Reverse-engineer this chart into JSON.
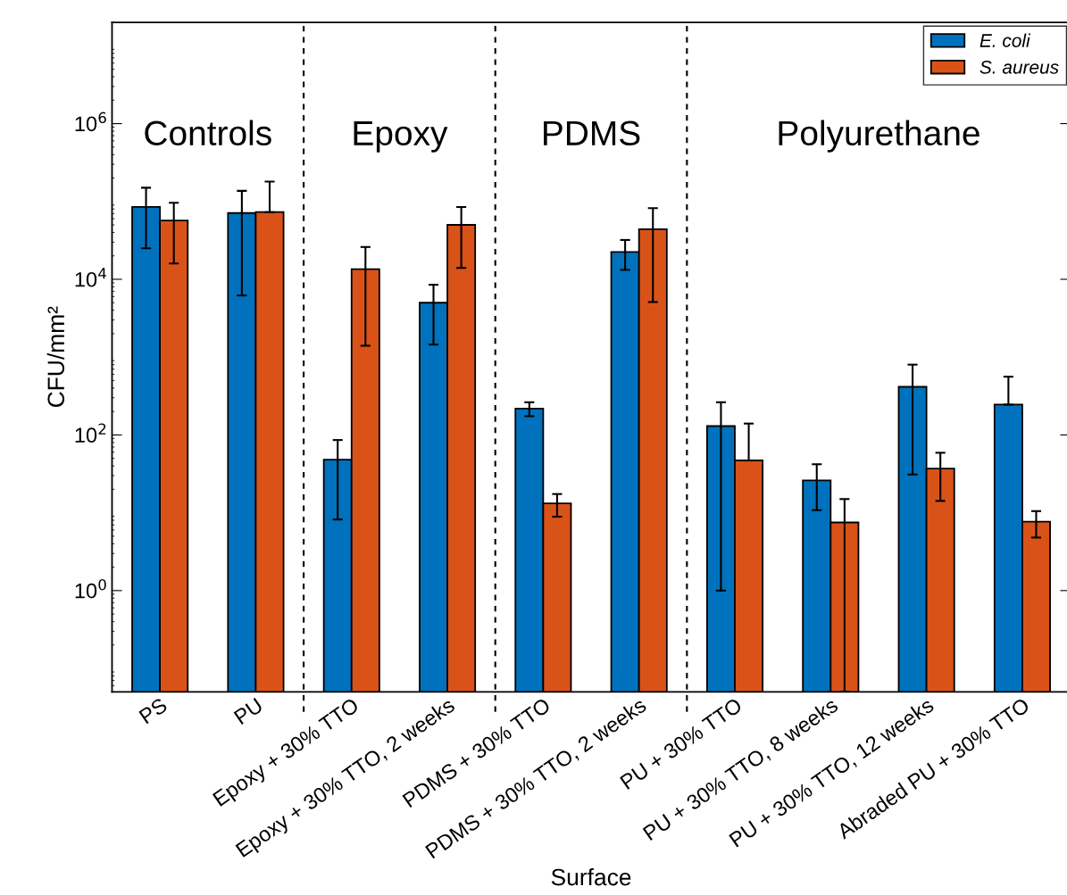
{
  "chart_data": {
    "type": "bar",
    "xlabel": "Surface",
    "ylabel": "CFU/mm²",
    "categories": [
      "PS",
      "PU",
      "Epoxy + 30% TTO",
      "Epoxy + 30% TTO, 2 weeks",
      "PDMS + 30% TTO",
      "PDMS + 30% TTO, 2 weeks",
      "PU + 30% TTO",
      "PU + 30% TTO, 8 weeks",
      "PU + 30% TTO, 12 weeks",
      "Abraded PU + 30% TTO"
    ],
    "series": [
      {
        "name": "E. coli",
        "color": "#0072bd",
        "values": [
          85000,
          71000,
          48,
          5000,
          218,
          22400,
          130,
          26,
          415,
          245
        ],
        "errors": [
          [
            25000,
            150000
          ],
          [
            6200,
            137000
          ],
          [
            8.2,
            86
          ],
          [
            1450,
            8500
          ],
          [
            174,
            263
          ],
          [
            13200,
            32000
          ],
          [
            1.0,
            263
          ],
          [
            10.8,
            42
          ],
          [
            31,
            800
          ],
          [
            245,
            560
          ]
        ]
      },
      {
        "name": "S. aureus",
        "color": "#d95319",
        "values": [
          57000,
          73000,
          13500,
          50000,
          13.2,
          44000,
          47,
          7.5,
          37,
          7.7
        ],
        "errors": [
          [
            16000,
            96000
          ],
          [
            73000,
            180000
          ],
          [
            1400,
            26000
          ],
          [
            14000,
            85000
          ],
          [
            8.9,
            17.4
          ],
          [
            5100,
            82000
          ],
          [
            47,
            140
          ],
          [
            0.05,
            15
          ],
          [
            14.2,
            59
          ],
          [
            4.8,
            10.5
          ]
        ]
      }
    ],
    "log": "y",
    "ylim": [
      0.05,
      20000000
    ],
    "yticks": [
      {
        "value": 1,
        "label": "10$^{0}$"
      },
      {
        "value": 100,
        "label": "10$^{2}$"
      },
      {
        "value": 10000,
        "label": "10$^{4}$"
      },
      {
        "value": 1000000,
        "label": "10$^{6}$"
      }
    ],
    "annotations": [
      "Controls",
      "Epoxy",
      "PDMS",
      "Polyurethane"
    ],
    "legend": "top right",
    "grid": false
  }
}
